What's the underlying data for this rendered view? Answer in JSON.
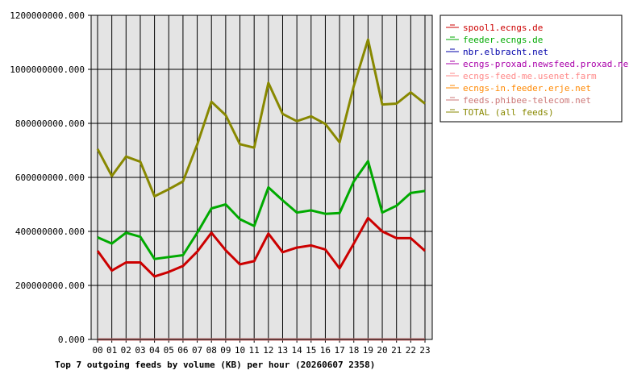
{
  "chart_data": {
    "type": "line",
    "title": "Top 7 outgoing feeds by volume (KB) per hour (20260607 2358)",
    "xlabel": "",
    "ylabel": "",
    "ylim": [
      0,
      1200000000
    ],
    "y_ticks": [
      "0.000",
      "200000000.000",
      "400000000.000",
      "600000000.000",
      "800000000.000",
      "1000000000.000",
      "1200000000.000"
    ],
    "y_tick_values": [
      0,
      200000000,
      400000000,
      600000000,
      800000000,
      1000000000,
      1200000000
    ],
    "categories": [
      "00",
      "01",
      "02",
      "03",
      "04",
      "05",
      "06",
      "07",
      "08",
      "09",
      "10",
      "11",
      "12",
      "13",
      "14",
      "15",
      "16",
      "17",
      "18",
      "19",
      "20",
      "21",
      "22",
      "23"
    ],
    "grid": true,
    "legend_position": "top-right",
    "series": [
      {
        "name": "spool1.ecngs.de",
        "color": "#cc0000",
        "values": [
          328000000,
          255000000,
          285000000,
          285000000,
          233000000,
          250000000,
          272000000,
          325000000,
          395000000,
          330000000,
          278000000,
          290000000,
          392000000,
          323000000,
          340000000,
          348000000,
          333000000,
          263000000,
          355000000,
          450000000,
          400000000,
          375000000,
          375000000,
          328000000
        ]
      },
      {
        "name": "feeder.ecngs.de",
        "color": "#00aa00",
        "values": [
          378000000,
          355000000,
          395000000,
          380000000,
          298000000,
          305000000,
          312000000,
          395000000,
          485000000,
          500000000,
          445000000,
          420000000,
          563000000,
          515000000,
          470000000,
          478000000,
          465000000,
          468000000,
          585000000,
          660000000,
          470000000,
          495000000,
          542000000,
          550000000
        ]
      },
      {
        "name": "nbr.elbracht.net",
        "color": "#0000aa",
        "values": [
          0,
          0,
          0,
          0,
          0,
          0,
          0,
          0,
          0,
          0,
          0,
          0,
          0,
          0,
          0,
          0,
          0,
          0,
          0,
          0,
          0,
          0,
          0,
          0
        ]
      },
      {
        "name": "ecngs-proxad.newsfeed.proxad.net",
        "color": "#aa00aa",
        "values": [
          0,
          0,
          0,
          0,
          0,
          0,
          0,
          0,
          0,
          0,
          0,
          0,
          0,
          0,
          0,
          0,
          0,
          0,
          0,
          0,
          0,
          0,
          0,
          0
        ]
      },
      {
        "name": "ecngs-feed-me.usenet.farm",
        "color": "#ff8888",
        "values": [
          0,
          0,
          0,
          0,
          0,
          0,
          0,
          0,
          0,
          0,
          0,
          0,
          0,
          0,
          0,
          0,
          0,
          0,
          0,
          0,
          0,
          0,
          0,
          0
        ]
      },
      {
        "name": "ecngs-in.feeder.erje.net",
        "color": "#ff8800",
        "values": [
          0,
          0,
          0,
          0,
          0,
          0,
          0,
          0,
          0,
          0,
          0,
          0,
          0,
          0,
          0,
          0,
          0,
          0,
          0,
          0,
          0,
          0,
          0,
          0
        ]
      },
      {
        "name": "feeds.phibee-telecom.net",
        "color": "#cc7777",
        "values": [
          0,
          0,
          0,
          0,
          0,
          0,
          0,
          0,
          0,
          0,
          0,
          0,
          0,
          0,
          0,
          0,
          0,
          0,
          0,
          0,
          0,
          0,
          0,
          0
        ]
      },
      {
        "name": "TOTAL (all feeds)",
        "color": "#888800",
        "values": [
          705000000,
          605000000,
          677000000,
          658000000,
          530000000,
          556000000,
          585000000,
          722000000,
          880000000,
          830000000,
          723000000,
          710000000,
          950000000,
          835000000,
          808000000,
          826000000,
          798000000,
          730000000,
          938000000,
          1110000000,
          870000000,
          873000000,
          915000000,
          873000000
        ]
      }
    ]
  }
}
